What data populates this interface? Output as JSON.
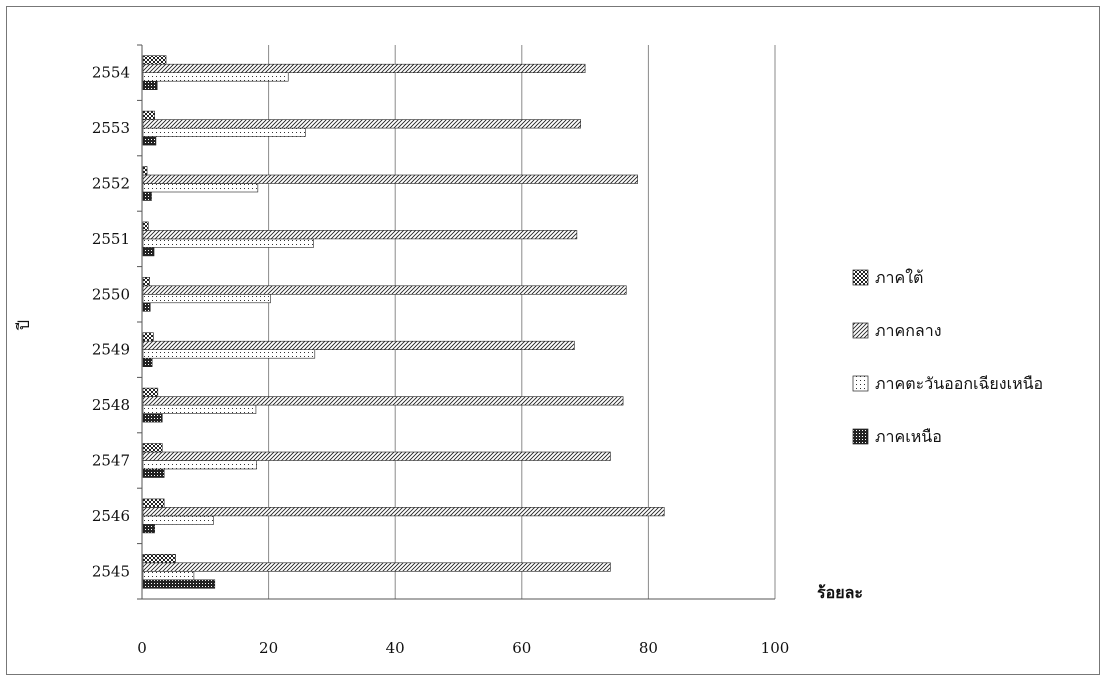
{
  "chart_data": {
    "type": "bar",
    "orientation": "horizontal",
    "categories": [
      "2545",
      "2546",
      "2547",
      "2548",
      "2549",
      "2550",
      "2551",
      "2552",
      "2553",
      "2554"
    ],
    "series": [
      {
        "name": "ภาคเหนือ",
        "values": [
          11.5,
          2.0,
          3.5,
          3.2,
          1.6,
          1.3,
          1.9,
          1.5,
          2.2,
          2.4
        ],
        "pattern": "dense-dark"
      },
      {
        "name": "ภาคตะวันออกเฉียงเหนือ",
        "values": [
          8.2,
          11.3,
          18.1,
          18.0,
          27.3,
          20.3,
          27.1,
          18.3,
          25.8,
          23.1
        ],
        "pattern": "sparse-dots"
      },
      {
        "name": "ภาคกลาง",
        "values": [
          74.0,
          82.5,
          74.0,
          76.0,
          68.3,
          76.5,
          68.7,
          78.3,
          69.3,
          70.0
        ],
        "pattern": "diagonal-hatch"
      },
      {
        "name": "ภาคใต้",
        "values": [
          5.3,
          3.5,
          3.2,
          2.5,
          1.8,
          1.2,
          1.0,
          0.8,
          2.0,
          3.8
        ],
        "pattern": "checker"
      }
    ],
    "legend_order": [
      "ภาคใต้",
      "ภาคกลาง",
      "ภาคตะวันออกเฉียงเหนือ",
      "ภาคเหนือ"
    ],
    "xlim": [
      0,
      100
    ],
    "xticks": [
      "0",
      "20",
      "40",
      "60",
      "80",
      "100"
    ],
    "xlabel": "ร้อยละ",
    "ylabel": "ปี",
    "grid": true,
    "legend_position": "right"
  }
}
